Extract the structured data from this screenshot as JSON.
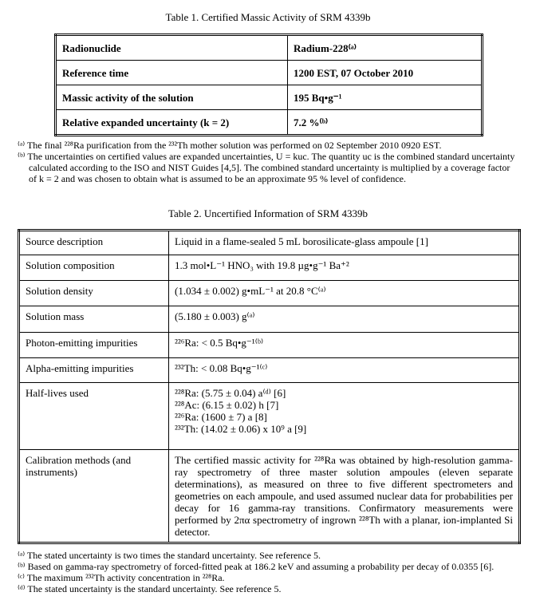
{
  "table1": {
    "caption": "Table 1.  Certified Massic Activity of SRM 4339b",
    "rows": [
      {
        "label": "Radionuclide",
        "value": "Radium-228⁽ᵃ⁾"
      },
      {
        "label": "Reference time",
        "value": "1200 EST, 07 October 2010"
      },
      {
        "label": "Massic activity of the solution",
        "value": "195 Bq•g⁻¹"
      },
      {
        "label": "Relative expanded uncertainty (k = 2)",
        "value": "7.2 %⁽ᵇ⁾"
      }
    ],
    "footnotes": [
      "⁽ᵃ⁾ The final ²²⁸Ra purification from the ²³²Th mother solution was performed on 02 September 2010 0920 EST.",
      "⁽ᵇ⁾ The uncertainties on certified values are expanded uncertainties, U = kuc. The quantity uc is the combined standard uncertainty calculated according to the ISO and NIST Guides [4,5].  The combined standard uncertainty is multiplied by a coverage factor of k = 2 and was chosen to obtain what is assumed to be an approximate 95 % level of confidence."
    ]
  },
  "table2": {
    "caption": "Table 2.  Uncertified Information of SRM 4339b",
    "rows": [
      {
        "label": "Source description",
        "value": "Liquid in a flame-sealed 5 mL borosilicate-glass ampoule [1]"
      },
      {
        "label": "Solution composition",
        "value": "1.3 mol•L⁻¹ HNO₃ with 19.8 µg•g⁻¹ Ba⁺²"
      },
      {
        "label": "Solution density",
        "value": "(1.034 ± 0.002) g•mL⁻¹ at 20.8 °C⁽ᵃ⁾"
      },
      {
        "label": "Solution mass",
        "value": "(5.180 ± 0.003) g⁽ᵃ⁾"
      },
      {
        "label": "Photon-emitting impurities",
        "value": "²²⁶Ra: < 0.5 Bq•g⁻¹⁽ᵇ⁾"
      },
      {
        "label": "Alpha-emitting impurities",
        "value": "²³²Th: < 0.08 Bq•g⁻¹⁽ᶜ⁾"
      },
      {
        "label": "Half-lives used",
        "values": [
          "²²⁸Ra: (5.75 ± 0.04) a⁽ᵈ⁾ [6]",
          "²²⁸Ac: (6.15 ± 0.02) h [7]",
          "²²⁶Ra: (1600 ± 7) a [8]",
          "²³²Th: (14.02 ± 0.06) x 10⁹ a [9]"
        ]
      },
      {
        "label": "Calibration methods (and instruments)",
        "value": "The certified massic activity for ²²⁸Ra was obtained by high-resolution gamma-ray spectrometry of three master solution ampoules (eleven separate determinations), as measured on three to five different spectrometers and geometries on each ampoule, and used assumed nuclear data for probabilities per decay for 16 gamma-ray transitions.  Confirmatory measurements were performed by 2πα spectrometry of ingrown ²²⁸Th with a planar, ion-implanted Si detector."
      }
    ],
    "footnotes": [
      "⁽ᵃ⁾ The stated uncertainty is two times the standard uncertainty.  See reference 5.",
      "⁽ᵇ⁾ Based on gamma-ray spectrometry of forced-fitted peak at 186.2 keV and assuming a probability per decay of 0.0355 [6].",
      "⁽ᶜ⁾ The maximum ²³²Th activity concentration in ²²⁸Ra.",
      "⁽ᵈ⁾ The stated uncertainty is the standard uncertainty.  See reference 5."
    ]
  }
}
